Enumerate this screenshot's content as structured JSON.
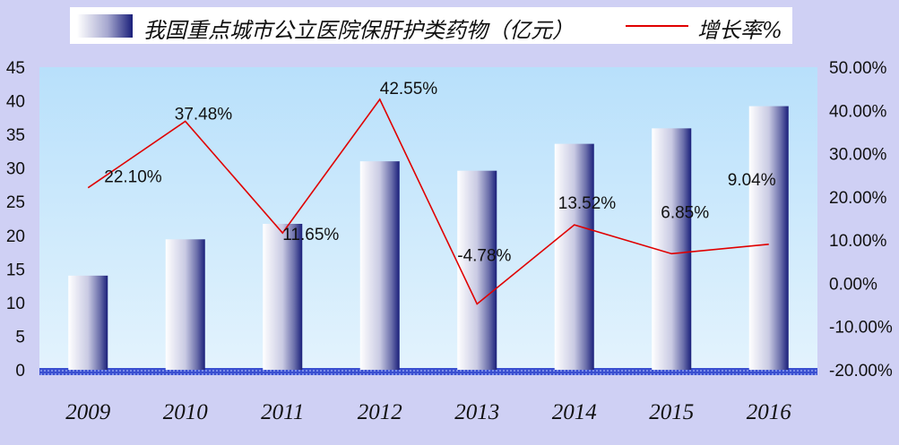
{
  "chart_data": {
    "type": "bar",
    "categories": [
      "2009",
      "2010",
      "2011",
      "2012",
      "2013",
      "2014",
      "2015",
      "2016"
    ],
    "series": [
      {
        "name": "我国重点城市公立医院保肝护类药物（亿元）",
        "type": "bar",
        "axis": "left",
        "values": [
          14.0,
          19.4,
          21.7,
          31.0,
          29.6,
          33.6,
          35.9,
          39.2
        ]
      },
      {
        "name": "增长率%",
        "type": "line",
        "axis": "right",
        "values": [
          22.1,
          37.48,
          11.65,
          42.55,
          -4.78,
          13.52,
          6.85,
          9.04
        ],
        "labels": [
          "22.10%",
          "37.48%",
          "11.65%",
          "42.55%",
          "-4.78%",
          "13.52%",
          "6.85%",
          "9.04%"
        ]
      }
    ],
    "y_left": {
      "min": 0,
      "max": 45,
      "ticks": [
        "0",
        "5",
        "10",
        "15",
        "20",
        "25",
        "30",
        "35",
        "40",
        "45"
      ]
    },
    "y_right": {
      "min": -20,
      "max": 50,
      "ticks": [
        "-20.00%",
        "-10.00%",
        "0.00%",
        "10.00%",
        "20.00%",
        "30.00%",
        "40.00%",
        "50.00%"
      ]
    },
    "legend_position": "top",
    "grid": false,
    "colors": {
      "bar_dark": "#1a1f7a",
      "bar_light": "#ffffff",
      "line": "#e00000",
      "plot_top": "#b8e0fb",
      "plot_bottom": "#e3f3fd",
      "page_bg": "#cfd0f4"
    }
  }
}
